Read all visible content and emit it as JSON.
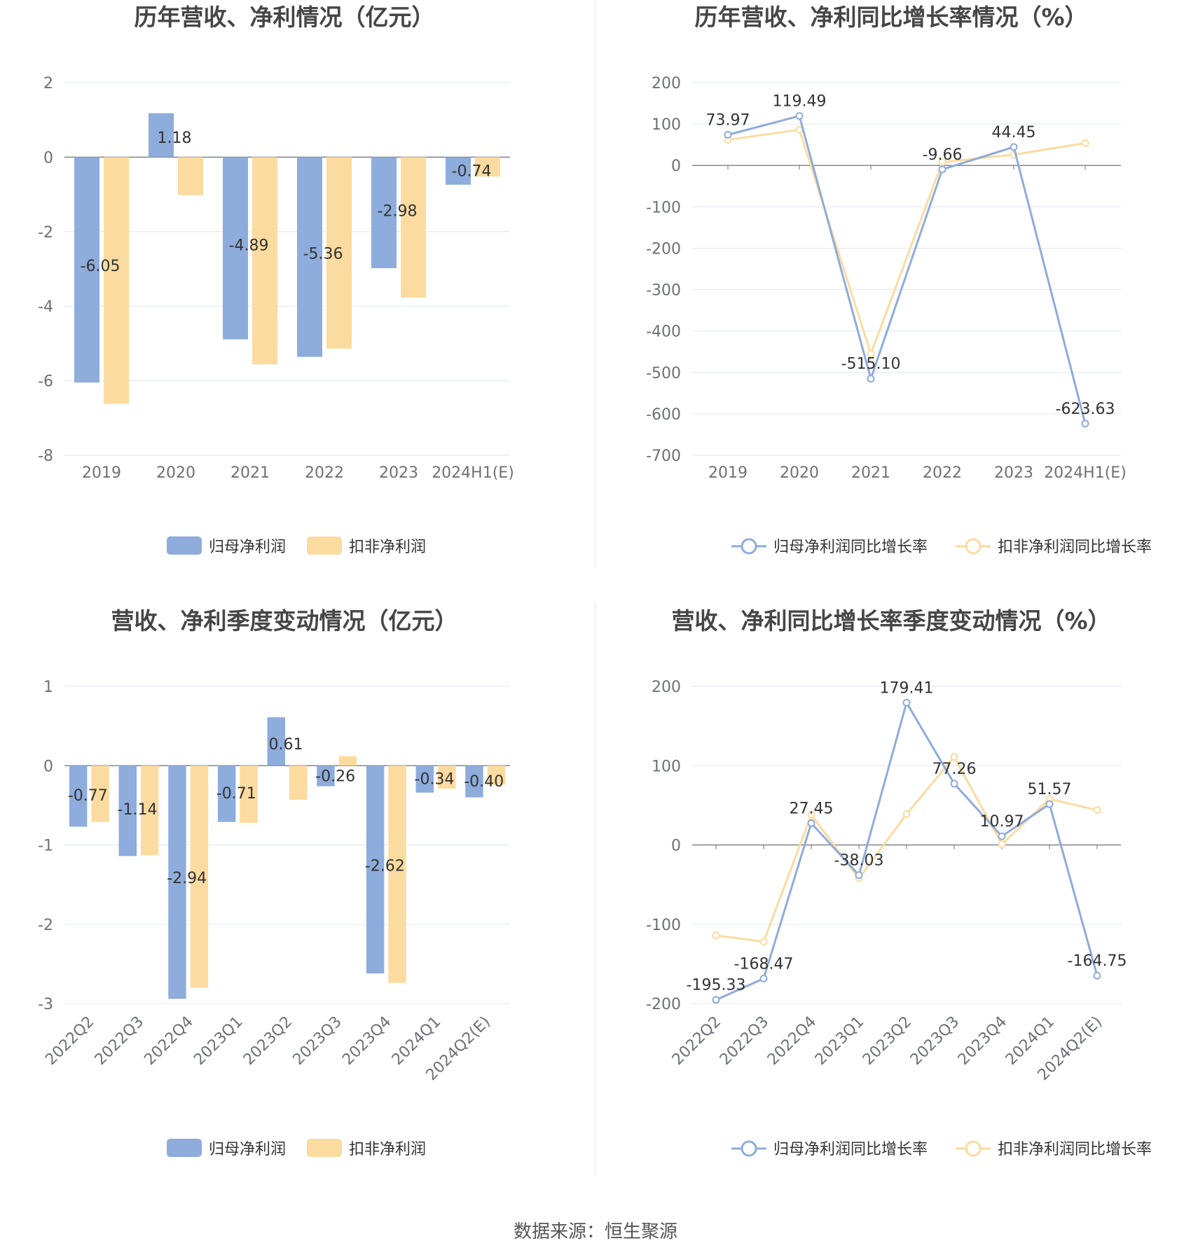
{
  "colors": {
    "series_a": "#8eacdc",
    "series_b": "#fcdba0",
    "grid": "#e0e6f1",
    "axis": "#6e7079"
  },
  "source": "数据来源：恒生聚源",
  "chart_data": [
    {
      "id": "annual-amount",
      "type": "bar",
      "title": "历年营收、净利情况（亿元）",
      "categories": [
        "2019",
        "2020",
        "2021",
        "2022",
        "2023",
        "2024H1(E)"
      ],
      "series": [
        {
          "name": "归母净利润",
          "values": [
            -6.05,
            1.18,
            -4.89,
            -5.36,
            -2.98,
            -0.74
          ],
          "labels": [
            "-6.05",
            "1.18",
            "-4.89",
            "-5.36",
            "-2.98",
            "-0.74"
          ]
        },
        {
          "name": "扣非净利润",
          "values": [
            -6.62,
            -1.02,
            -5.56,
            -5.14,
            -3.77,
            -0.52
          ]
        }
      ],
      "yticks": [
        2,
        0,
        -2,
        -4,
        -6,
        -8
      ],
      "ylim": [
        -8,
        2
      ],
      "legend": "bottom"
    },
    {
      "id": "annual-growth",
      "type": "line",
      "title": "历年营收、净利同比增长率情况（%）",
      "categories": [
        "2019",
        "2020",
        "2021",
        "2022",
        "2023",
        "2024H1(E)"
      ],
      "series": [
        {
          "name": "归母净利润同比增长率",
          "values": [
            73.97,
            119.49,
            -515.1,
            -9.66,
            44.45,
            -623.63
          ],
          "labels": [
            "73.97",
            "119.49",
            "-515.10",
            "-9.66",
            "44.45",
            "-623.63"
          ]
        },
        {
          "name": "扣非净利润同比增长率",
          "values": [
            62,
            86,
            -455,
            8,
            26,
            54
          ]
        }
      ],
      "yticks": [
        200,
        100,
        0,
        -100,
        -200,
        -300,
        -400,
        -500,
        -600,
        -700
      ],
      "ylim": [
        -700,
        200
      ],
      "legend": "bottom"
    },
    {
      "id": "quarterly-amount",
      "type": "bar",
      "title": "营收、净利季度变动情况（亿元）",
      "categories": [
        "2022Q2",
        "2022Q3",
        "2022Q4",
        "2023Q1",
        "2023Q2",
        "2023Q3",
        "2023Q4",
        "2024Q1",
        "2024Q2(E)"
      ],
      "series": [
        {
          "name": "归母净利润",
          "values": [
            -0.77,
            -1.14,
            -2.94,
            -0.71,
            0.61,
            -0.26,
            -2.62,
            -0.34,
            -0.4
          ],
          "labels": [
            "-0.77",
            "-1.14",
            "-2.94",
            "-0.71",
            "0.61",
            "-0.26",
            "-2.62",
            "-0.34",
            "-0.40"
          ]
        },
        {
          "name": "扣非净利润",
          "values": [
            -0.71,
            -1.13,
            -2.8,
            -0.72,
            -0.43,
            0.12,
            -2.74,
            -0.29,
            -0.24
          ]
        }
      ],
      "yticks": [
        1,
        0,
        -1,
        -2,
        -3
      ],
      "ylim": [
        -3,
        1
      ],
      "legend": "bottom"
    },
    {
      "id": "quarterly-growth",
      "type": "line",
      "title": "营收、净利同比增长率季度变动情况（%）",
      "categories": [
        "2022Q2",
        "2022Q3",
        "2022Q4",
        "2023Q1",
        "2023Q2",
        "2023Q3",
        "2023Q4",
        "2024Q1",
        "2024Q2(E)"
      ],
      "series": [
        {
          "name": "归母净利润同比增长率",
          "values": [
            -195.33,
            -168.47,
            27.45,
            -38.03,
            179.41,
            77.26,
            10.97,
            51.57,
            -164.75
          ],
          "labels": [
            "-195.33",
            "-168.47",
            "27.45",
            "-38.03",
            "179.41",
            "77.26",
            "10.97",
            "51.57",
            "-164.75"
          ]
        },
        {
          "name": "扣非净利润同比增长率",
          "values": [
            -114,
            -122,
            38,
            -42,
            39,
            111,
            1,
            58,
            44
          ]
        }
      ],
      "yticks": [
        200,
        100,
        0,
        -100,
        -200
      ],
      "ylim": [
        -200,
        200
      ],
      "legend": "bottom"
    }
  ]
}
